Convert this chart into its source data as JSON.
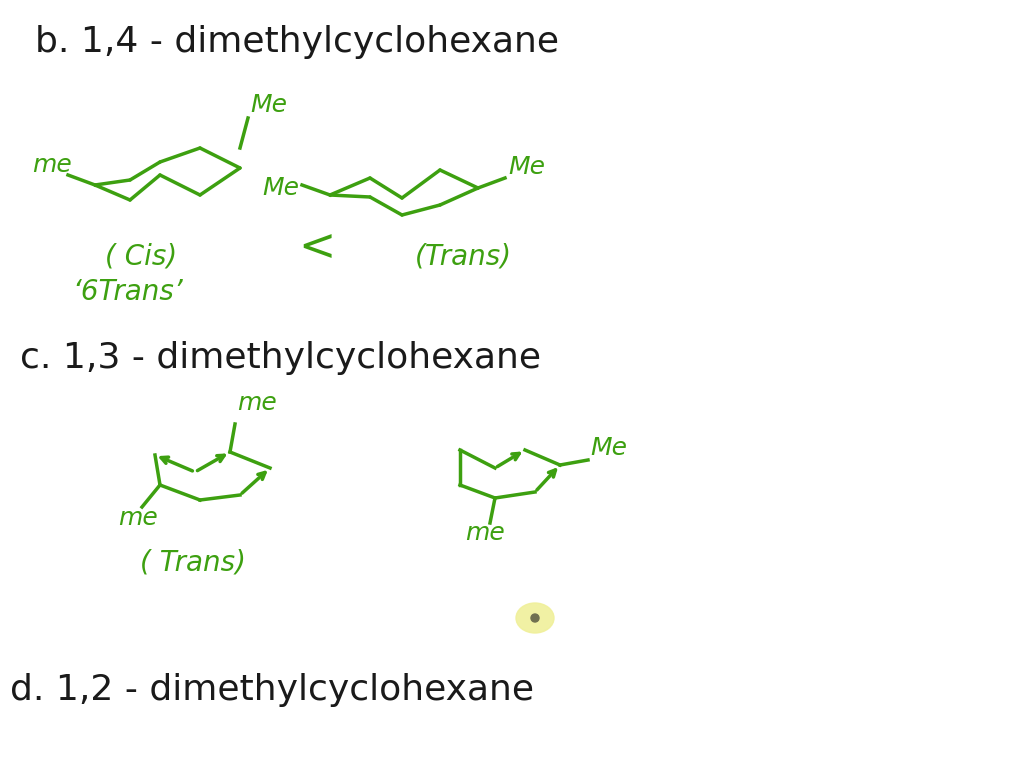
{
  "bg_color": "#ffffff",
  "green_color": "#3da010",
  "black_color": "#1a1a1a",
  "title_b": "b. 1,4 - dimethylcyclohexane",
  "title_c": "c. 1,3 - dimethylcyclohexane",
  "title_d": "d. 1,2 - dimethylcyclohexane",
  "label_cis": "( Cis)",
  "label_trans_b": "(Trans)",
  "label_btrans": "Trans’",
  "label_trans_c": "( Trans)",
  "less_than": "<",
  "label_6trans": "‘6",
  "fig_width": 10.24,
  "fig_height": 7.68,
  "dpi": 100
}
